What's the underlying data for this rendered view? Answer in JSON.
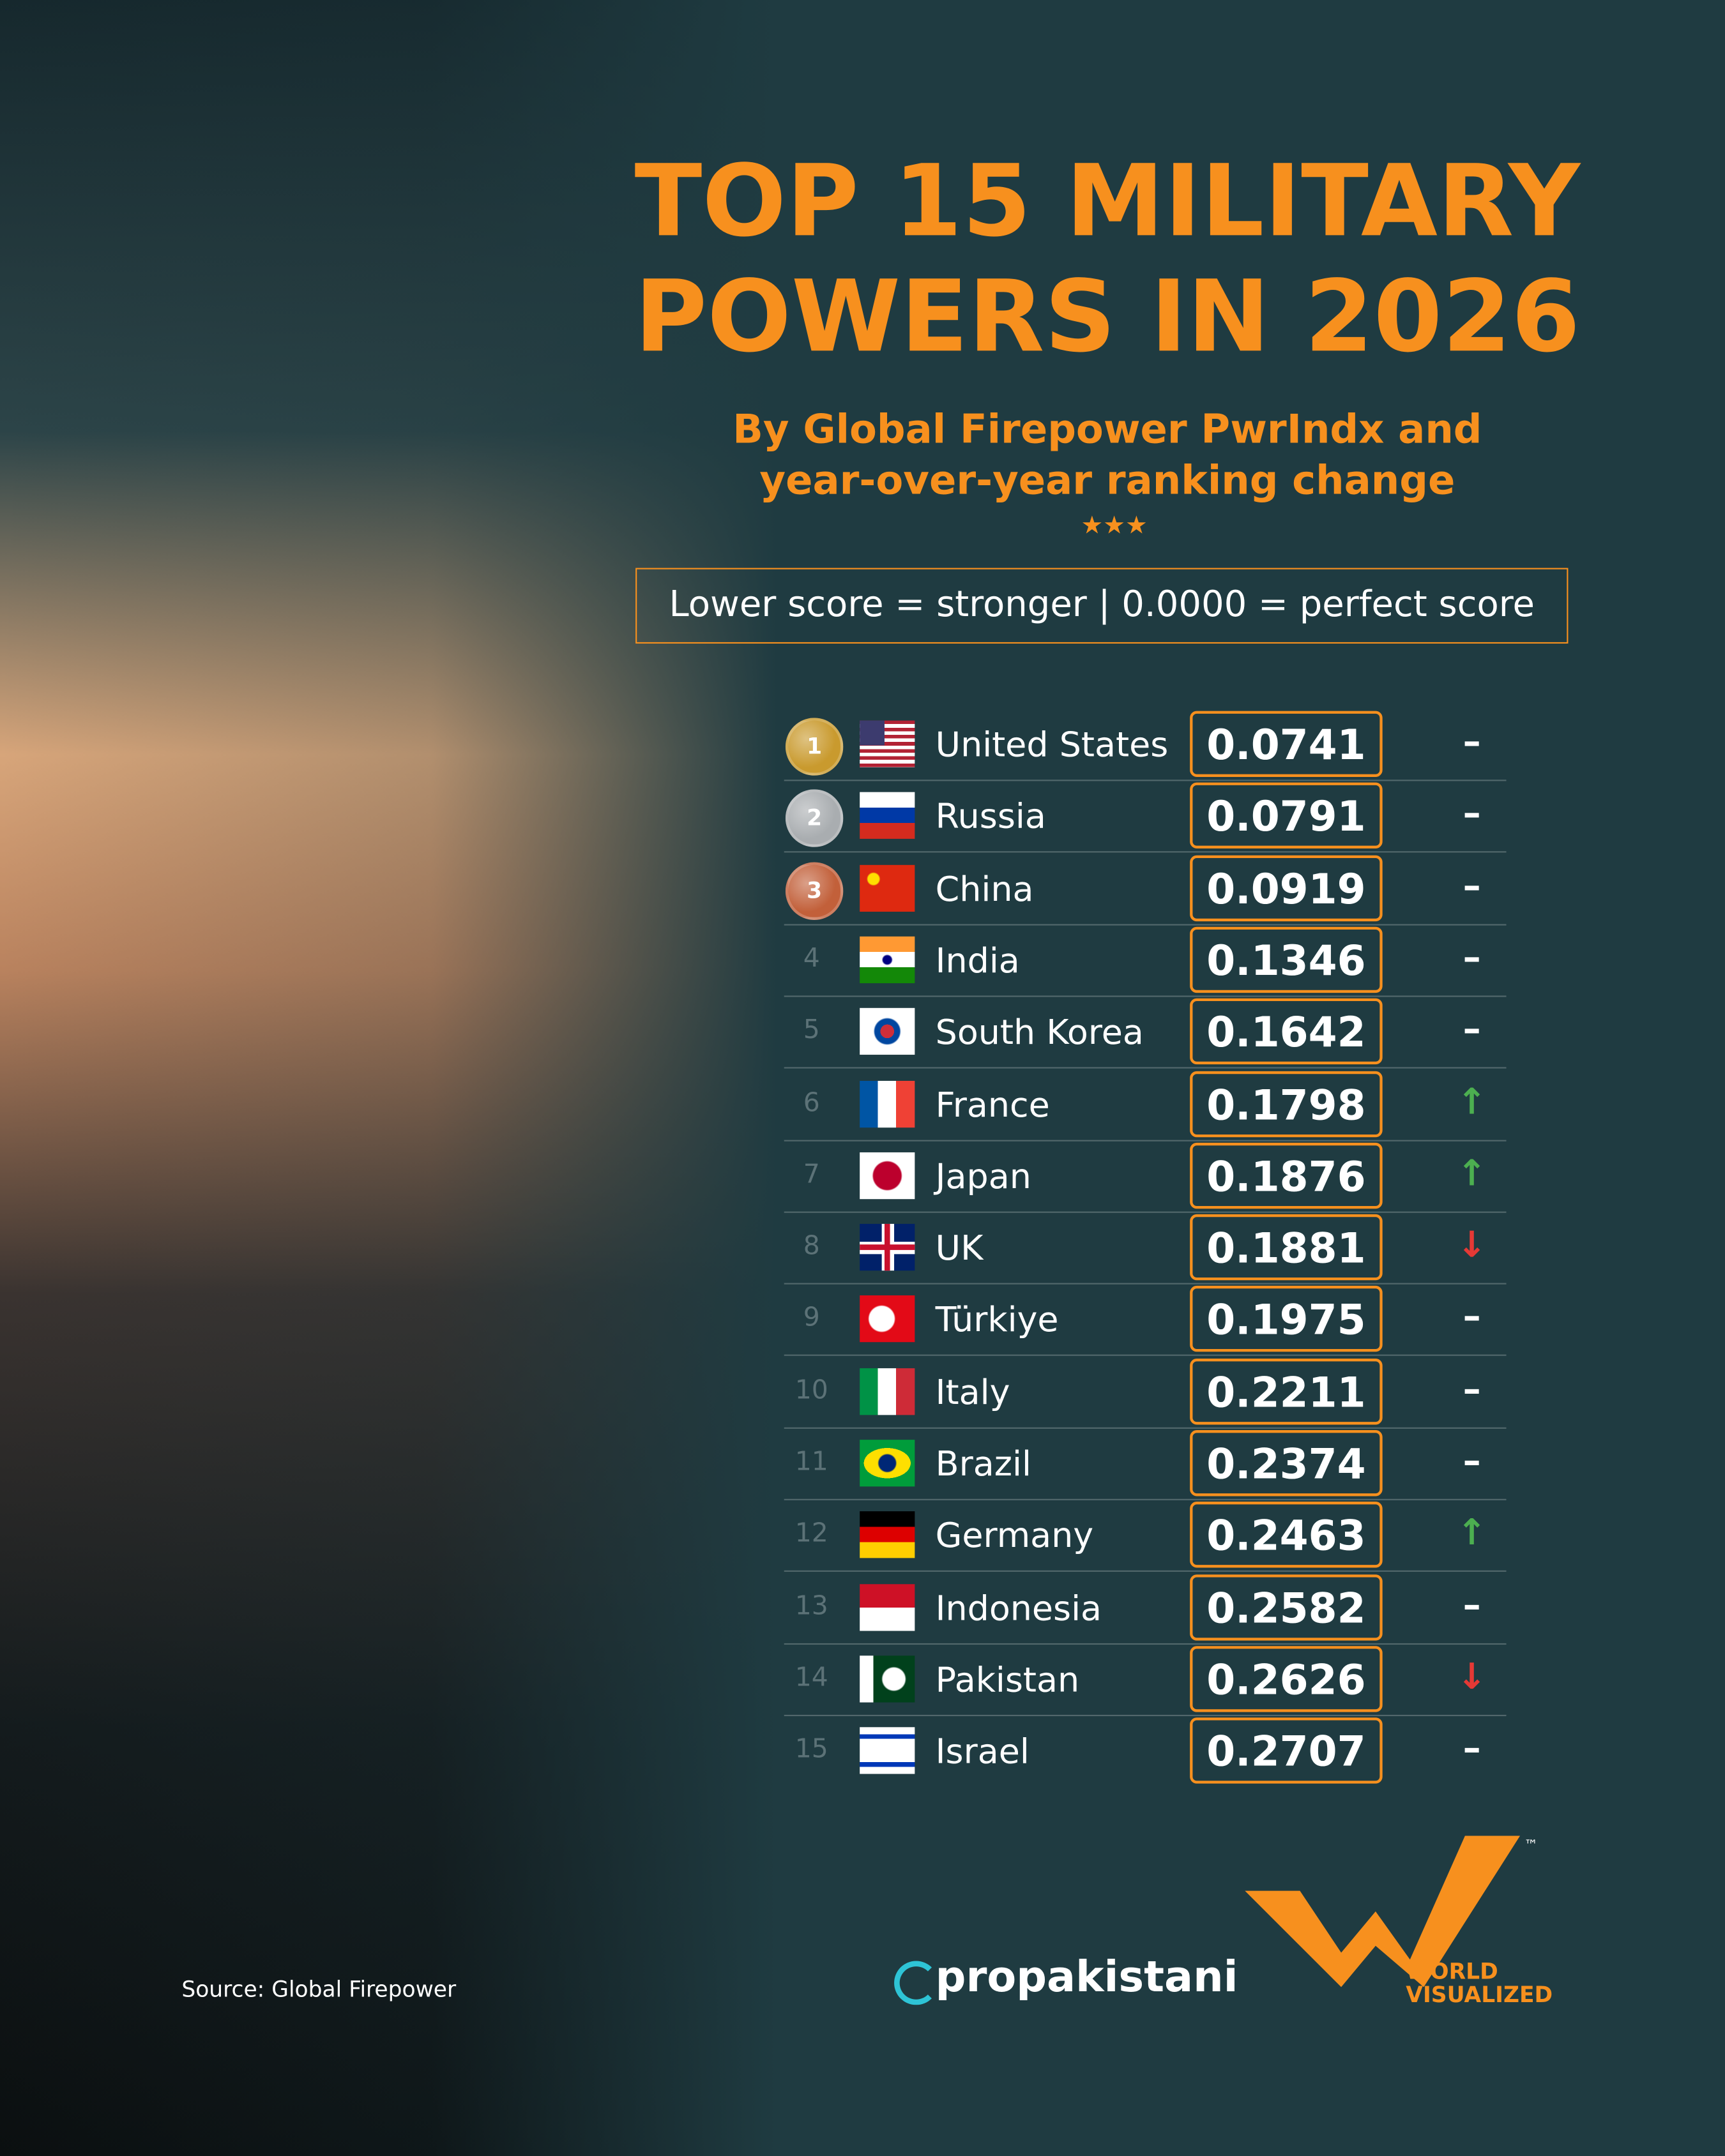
{
  "header": {
    "title": [
      "TOP 15 MILITARY",
      "POWERS IN 2026"
    ],
    "subtitle": [
      "By Global Firepower PwrIndx and",
      "year-over-year ranking change"
    ],
    "note": "Lower score = stronger | 0.0000 = perfect score"
  },
  "rows": [
    {
      "rank": 1,
      "country": "United States",
      "score": "0.0741",
      "change": "–"
    },
    {
      "rank": 2,
      "country": "Russia",
      "score": "0.0791",
      "change": "–"
    },
    {
      "rank": 3,
      "country": "China",
      "score": "0.0919",
      "change": "–"
    },
    {
      "rank": 4,
      "country": "India",
      "score": "0.1346",
      "change": "–"
    },
    {
      "rank": 5,
      "country": "South Korea",
      "score": "0.1642",
      "change": "–"
    },
    {
      "rank": 6,
      "country": "France",
      "score": "0.1798",
      "change": "↑"
    },
    {
      "rank": 7,
      "country": "Japan",
      "score": "0.1876",
      "change": "↑"
    },
    {
      "rank": 8,
      "country": "UK",
      "score": "0.1881",
      "change": "↓"
    },
    {
      "rank": 9,
      "country": "Türkiye",
      "score": "0.1975",
      "change": "–"
    },
    {
      "rank": 10,
      "country": "Italy",
      "score": "0.2211",
      "change": "–"
    },
    {
      "rank": 11,
      "country": "Brazil",
      "score": "0.2374",
      "change": "–"
    },
    {
      "rank": 12,
      "country": "Germany",
      "score": "0.2463",
      "change": "↑"
    },
    {
      "rank": 13,
      "country": "Indonesia",
      "score": "0.2582",
      "change": "–"
    },
    {
      "rank": 14,
      "country": "Pakistan",
      "score": "0.2626",
      "change": "↓"
    },
    {
      "rank": 15,
      "country": "Israel",
      "score": "0.2707",
      "change": "–"
    }
  ],
  "footer": {
    "source": "Source: Global Firepower",
    "brand": "propakistani",
    "logo": "WORLD VISUALIZED",
    "trademark": "™"
  }
}
